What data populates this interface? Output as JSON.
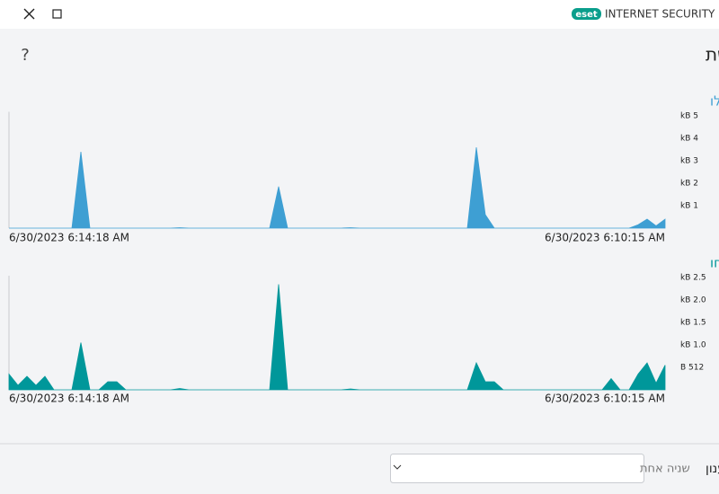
{
  "window": {
    "brand": "eset",
    "product": "INTERNET SECURITY"
  },
  "header": {
    "title": "פעילות רשת",
    "help": "?"
  },
  "chart_data": [
    {
      "type": "area",
      "title": "כמות נתונים שהתקבלו",
      "color": "#3e9fd3",
      "title_color": "#3e9fd3",
      "categories": [
        "6/30/2023 6:14:18 AM",
        null,
        null,
        null,
        null,
        null,
        null,
        null,
        null,
        null,
        null,
        null,
        null,
        null,
        null,
        null,
        null,
        null,
        null,
        null,
        null,
        null,
        null,
        null,
        null,
        null,
        null,
        null,
        null,
        null,
        null,
        null,
        null,
        null,
        null,
        null,
        null,
        null,
        null,
        null,
        null,
        null,
        null,
        null,
        null,
        null,
        null,
        null,
        null,
        null,
        null,
        null,
        null,
        null,
        null,
        null,
        null,
        null,
        null,
        null,
        null,
        null,
        null,
        null,
        null,
        null,
        null,
        null,
        null,
        null,
        null,
        null,
        null,
        "6/30/2023 6:10:15 AM"
      ],
      "values": [
        0,
        0,
        0,
        0,
        0,
        0,
        0,
        0,
        3.4,
        0,
        0,
        0,
        0,
        0,
        0,
        0,
        0,
        0,
        0,
        0.02,
        0,
        0,
        0,
        0,
        0,
        0,
        0,
        0,
        0,
        0,
        1.85,
        0,
        0,
        0,
        0,
        0,
        0,
        0,
        0.02,
        0,
        0,
        0,
        0,
        0,
        0,
        0,
        0,
        0,
        0,
        0,
        0,
        0,
        3.6,
        0.6,
        0,
        0,
        0,
        0,
        0,
        0,
        0,
        0,
        0,
        0,
        0,
        0,
        0,
        0,
        0,
        0,
        0.15,
        0.4,
        0.1,
        0.4
      ],
      "ylim": [
        0,
        5.5
      ],
      "yticks": [
        {
          "value": 1,
          "label": "kB 1"
        },
        {
          "value": 2,
          "label": "kB 2"
        },
        {
          "value": 3,
          "label": "kB 3"
        },
        {
          "value": 4,
          "label": "kB 4"
        },
        {
          "value": 5,
          "label": "kB 5"
        }
      ]
    },
    {
      "type": "area",
      "title": "כמות נתונים שנשלחו",
      "color": "#00979a",
      "title_color": "#00979a",
      "categories": [
        "6/30/2023 6:14:18 AM",
        null,
        null,
        null,
        null,
        null,
        null,
        null,
        null,
        null,
        null,
        null,
        null,
        null,
        null,
        null,
        null,
        null,
        null,
        null,
        null,
        null,
        null,
        null,
        null,
        null,
        null,
        null,
        null,
        null,
        null,
        null,
        null,
        null,
        null,
        null,
        null,
        null,
        null,
        null,
        null,
        null,
        null,
        null,
        null,
        null,
        null,
        null,
        null,
        null,
        null,
        null,
        null,
        null,
        null,
        null,
        null,
        null,
        null,
        null,
        null,
        null,
        null,
        null,
        null,
        null,
        null,
        null,
        null,
        null,
        null,
        null,
        null,
        "6/30/2023 6:10:15 AM"
      ],
      "values": [
        0.35,
        0.1,
        0.3,
        0.1,
        0.3,
        0,
        0,
        0,
        1.05,
        0,
        0,
        0.18,
        0.18,
        0,
        0,
        0,
        0,
        0,
        0,
        0.03,
        0,
        0,
        0,
        0,
        0,
        0,
        0,
        0,
        0,
        0,
        2.35,
        0,
        0,
        0,
        0,
        0,
        0,
        0,
        0.02,
        0,
        0,
        0,
        0,
        0,
        0,
        0,
        0,
        0,
        0,
        0,
        0,
        0,
        0.6,
        0.18,
        0.18,
        0,
        0,
        0,
        0,
        0,
        0,
        0,
        0,
        0,
        0,
        0,
        0,
        0.25,
        0,
        0,
        0.35,
        0.6,
        0.15,
        0.55
      ],
      "ylim": [
        0,
        2.7
      ],
      "yticks": [
        {
          "value": 0.5,
          "label": "B 512"
        },
        {
          "value": 1,
          "label": "kB 1.0"
        },
        {
          "value": 1.5,
          "label": "kB 1.5"
        },
        {
          "value": 2,
          "label": "kB 2.0"
        },
        {
          "value": 2.5,
          "label": "kB 2.5"
        }
      ]
    }
  ],
  "footer": {
    "label": "קצב רענון",
    "select": "שניה אחת"
  }
}
